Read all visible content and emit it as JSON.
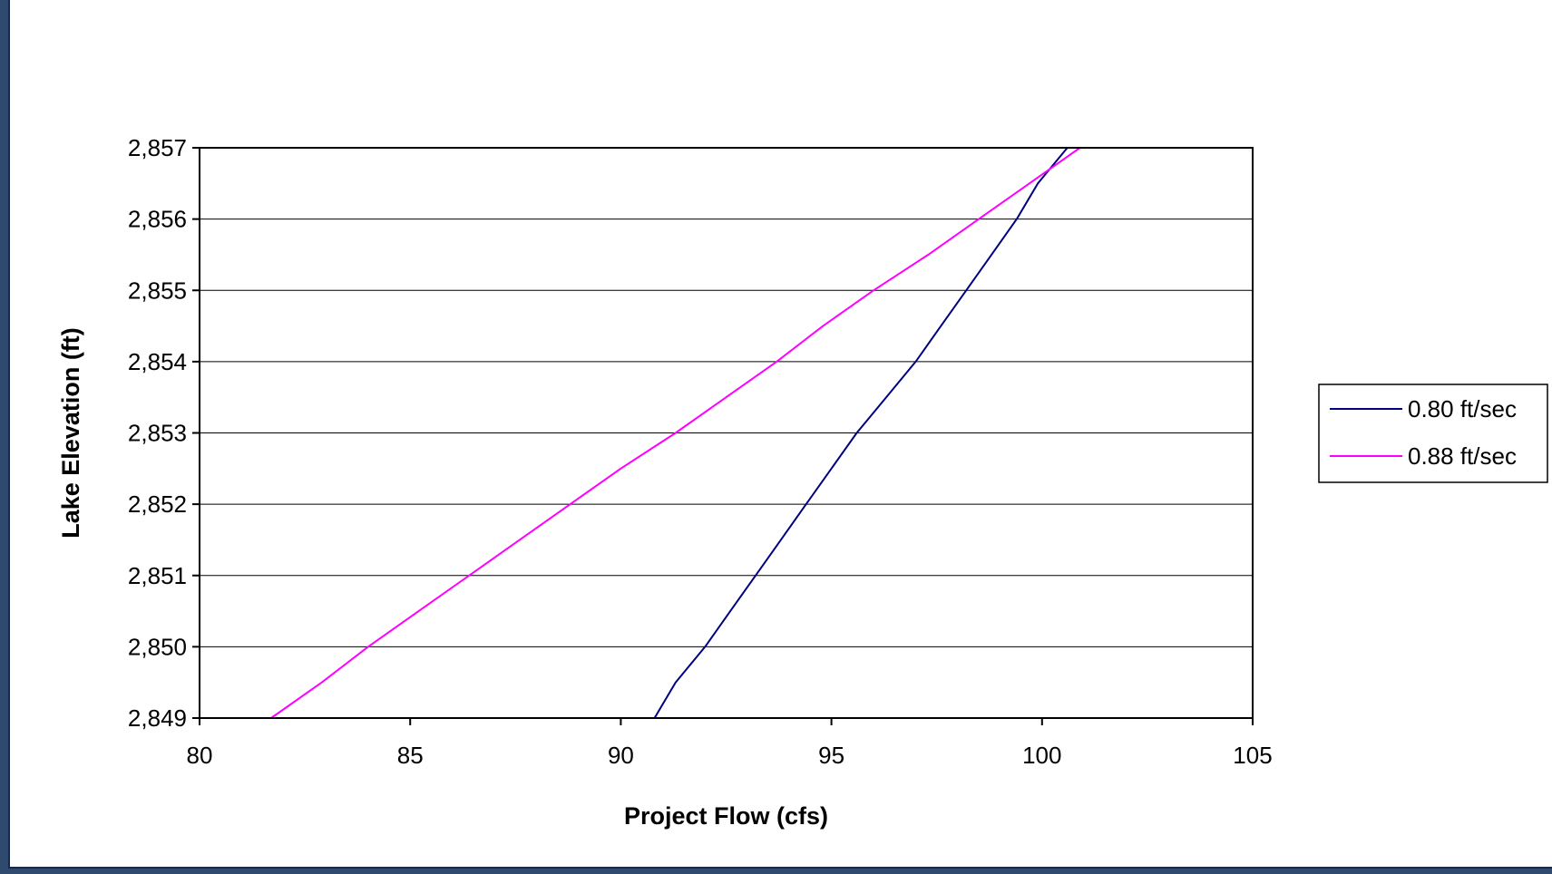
{
  "chart_data": {
    "type": "line",
    "title": "",
    "xlabel": "Project Flow (cfs)",
    "ylabel": "Lake Elevation (ft)",
    "xlim": [
      80,
      105
    ],
    "ylim": [
      2849,
      2857
    ],
    "x_ticks": [
      80,
      85,
      90,
      95,
      100,
      105
    ],
    "x_tick_labels": [
      "80",
      "85",
      "90",
      "95",
      "100",
      "105"
    ],
    "y_ticks": [
      2849,
      2850,
      2851,
      2852,
      2853,
      2854,
      2855,
      2856,
      2857
    ],
    "y_tick_labels": [
      "2,849",
      "2,850",
      "2,851",
      "2,852",
      "2,853",
      "2,854",
      "2,855",
      "2,856",
      "2,857"
    ],
    "grid": "horizontal",
    "legend_position": "right",
    "series": [
      {
        "name": "0.80 ft/sec",
        "color": "#000080",
        "points": [
          [
            90.8,
            2849.0
          ],
          [
            91.3,
            2849.5
          ],
          [
            92.0,
            2850.0
          ],
          [
            92.6,
            2850.5
          ],
          [
            93.2,
            2851.0
          ],
          [
            93.8,
            2851.5
          ],
          [
            94.4,
            2852.0
          ],
          [
            95.0,
            2852.5
          ],
          [
            95.6,
            2853.0
          ],
          [
            96.3,
            2853.5
          ],
          [
            97.0,
            2854.0
          ],
          [
            97.6,
            2854.5
          ],
          [
            98.2,
            2855.0
          ],
          [
            98.8,
            2855.5
          ],
          [
            99.4,
            2856.0
          ],
          [
            99.9,
            2856.5
          ],
          [
            100.6,
            2857.0
          ]
        ]
      },
      {
        "name": "0.88 ft/sec",
        "color": "#ff00ff",
        "points": [
          [
            81.7,
            2849.0
          ],
          [
            82.9,
            2849.5
          ],
          [
            84.0,
            2850.0
          ],
          [
            85.2,
            2850.5
          ],
          [
            86.4,
            2851.0
          ],
          [
            87.6,
            2851.5
          ],
          [
            88.8,
            2852.0
          ],
          [
            90.0,
            2852.5
          ],
          [
            91.3,
            2853.0
          ],
          [
            92.5,
            2853.5
          ],
          [
            93.7,
            2854.0
          ],
          [
            94.8,
            2854.5
          ],
          [
            96.0,
            2855.0
          ],
          [
            97.3,
            2855.5
          ],
          [
            98.5,
            2856.0
          ],
          [
            99.7,
            2856.5
          ],
          [
            100.9,
            2857.0
          ]
        ]
      }
    ]
  }
}
